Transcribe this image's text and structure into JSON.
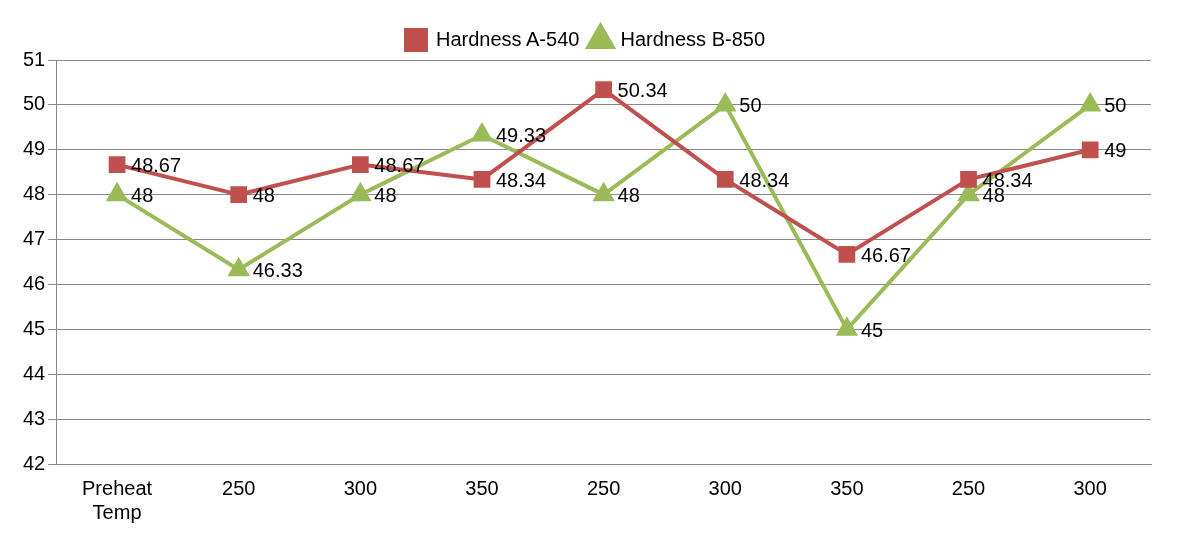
{
  "chart_data": {
    "type": "line",
    "categories": [
      "Preheat Temp",
      "250",
      "300",
      "350",
      "250",
      "300",
      "350",
      "250",
      "300"
    ],
    "series": [
      {
        "name": "Hardness A-540",
        "color": "#c0504d",
        "marker": "square",
        "values": [
          48.67,
          48,
          48.67,
          48.34,
          50.34,
          48.34,
          46.67,
          48.34,
          49
        ]
      },
      {
        "name": "Hardness B-850",
        "color": "#9bbb59",
        "marker": "triangle",
        "values": [
          48,
          46.33,
          48,
          49.33,
          48,
          50,
          45,
          48,
          50
        ]
      }
    ],
    "ylim": [
      42,
      51
    ],
    "yticks": [
      42,
      43,
      44,
      45,
      46,
      47,
      48,
      49,
      50,
      51
    ],
    "grid": "y",
    "legend": "top",
    "data_labels": true,
    "line_style": "solid"
  }
}
